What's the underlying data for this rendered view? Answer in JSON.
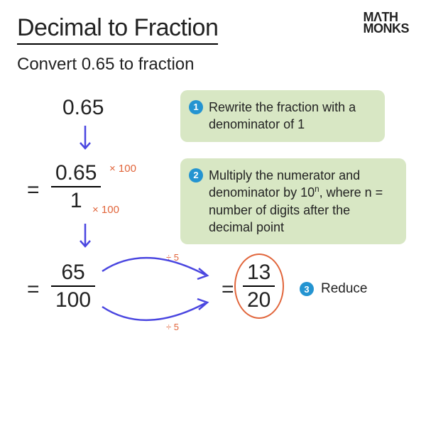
{
  "logo": {
    "line1": "MΛTH",
    "line2": "MONKS"
  },
  "title": "Decimal to Fraction",
  "subtitle": "Convert 0.65 to fraction",
  "colors": {
    "note_bg": "#d8e7c4",
    "badge": "#2494d1",
    "arrow_blue": "#4a46e0",
    "anno_orange": "#e1653b",
    "oval": "#e1653b",
    "text": "#222222"
  },
  "steps": {
    "start_value": "0.65",
    "multiply_label_top": "× 100",
    "multiply_label_bot": "× 100",
    "frac1": {
      "num": "0.65",
      "den": "1"
    },
    "frac2": {
      "num": "65",
      "den": "100"
    },
    "divide_label": "÷ 5",
    "result": {
      "num": "13",
      "den": "20"
    }
  },
  "notes": {
    "n1": {
      "badge": "1",
      "text": "Rewrite the fraction with a denominator of 1"
    },
    "n2": {
      "badge": "2",
      "text_html": "Multiply the numerator and denominator by 10<sup>n</sup>, where n = number of digits after the decimal point"
    },
    "n3": {
      "badge": "3",
      "text": "Reduce"
    }
  }
}
